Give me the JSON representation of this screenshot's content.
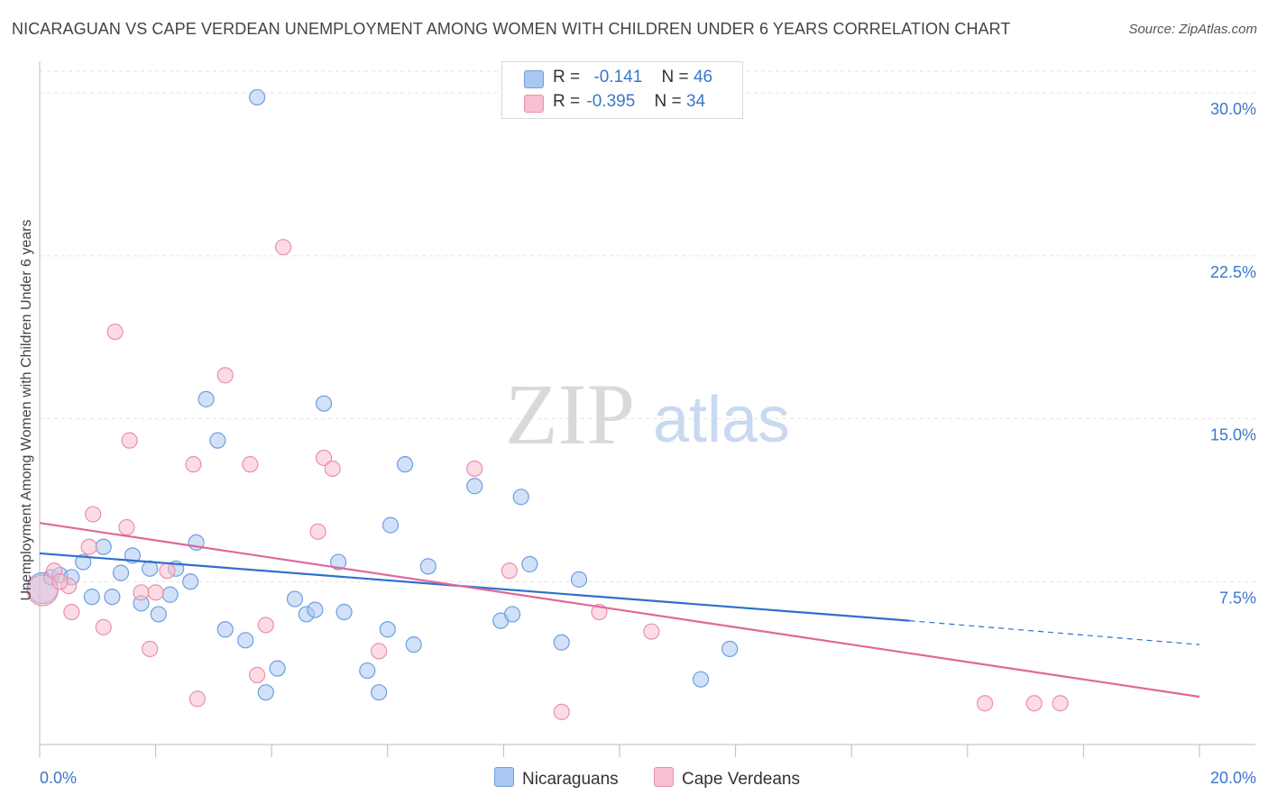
{
  "title": "NICARAGUAN VS CAPE VERDEAN UNEMPLOYMENT AMONG WOMEN WITH CHILDREN UNDER 6 YEARS CORRELATION CHART",
  "source": "Source: ZipAtlas.com",
  "watermark": {
    "zip": "ZIP",
    "atlas": "atlas"
  },
  "legend_stats": [
    {
      "r_label": "R =",
      "r_value": "-0.141",
      "n_label": "N =",
      "n_value": "46",
      "color": "#a9c8f2",
      "stroke": "#6f9fe0"
    },
    {
      "r_label": "R =",
      "r_value": "-0.395",
      "n_label": "N =",
      "n_value": "34",
      "color": "#f7bfd0",
      "stroke": "#ec8fab"
    }
  ],
  "chart_data": {
    "type": "scatter",
    "xlabel": "",
    "ylabel": "Unemployment Among Women with Children Under 6 years",
    "xlim": [
      0,
      20
    ],
    "ylim": [
      0,
      31
    ],
    "x_tick_labels": [
      "0.0%",
      "20.0%"
    ],
    "y_ticks": [
      7.5,
      15.0,
      22.5,
      30.0
    ],
    "y_tick_labels": [
      "7.5%",
      "15.0%",
      "22.5%",
      "30.0%"
    ],
    "grid": true,
    "series": [
      {
        "name": "Nicaraguans",
        "color": "#a9c8f2",
        "stroke": "#6f9fe0",
        "line_color": "#2f6fcf",
        "trend": {
          "x0": 0,
          "y0": 8.8,
          "x1": 15.0,
          "y1": 5.7,
          "dash_to_x": 20.0,
          "dash_y": 4.6
        },
        "points": [
          {
            "x": 0.05,
            "y": 7.2,
            "size": "large"
          },
          {
            "x": 0.2,
            "y": 7.7
          },
          {
            "x": 0.35,
            "y": 7.8
          },
          {
            "x": 0.55,
            "y": 7.7
          },
          {
            "x": 0.75,
            "y": 8.4
          },
          {
            "x": 0.9,
            "y": 6.8
          },
          {
            "x": 1.1,
            "y": 9.1
          },
          {
            "x": 1.25,
            "y": 6.8
          },
          {
            "x": 1.4,
            "y": 7.9
          },
          {
            "x": 1.6,
            "y": 8.7
          },
          {
            "x": 1.75,
            "y": 6.5
          },
          {
            "x": 1.9,
            "y": 8.1
          },
          {
            "x": 2.05,
            "y": 6.0
          },
          {
            "x": 2.25,
            "y": 6.9
          },
          {
            "x": 2.35,
            "y": 8.1
          },
          {
            "x": 2.6,
            "y": 7.5
          },
          {
            "x": 2.7,
            "y": 9.3
          },
          {
            "x": 2.87,
            "y": 15.9
          },
          {
            "x": 3.07,
            "y": 14.0
          },
          {
            "x": 3.2,
            "y": 5.3
          },
          {
            "x": 3.55,
            "y": 4.8
          },
          {
            "x": 3.75,
            "y": 29.8
          },
          {
            "x": 3.9,
            "y": 2.4
          },
          {
            "x": 4.1,
            "y": 3.5
          },
          {
            "x": 4.4,
            "y": 6.7
          },
          {
            "x": 4.6,
            "y": 6.0
          },
          {
            "x": 4.75,
            "y": 6.2
          },
          {
            "x": 4.9,
            "y": 15.7
          },
          {
            "x": 5.15,
            "y": 8.4
          },
          {
            "x": 5.25,
            "y": 6.1
          },
          {
            "x": 5.65,
            "y": 3.4
          },
          {
            "x": 5.85,
            "y": 2.4
          },
          {
            "x": 6.0,
            "y": 5.3
          },
          {
            "x": 6.3,
            "y": 12.9
          },
          {
            "x": 6.45,
            "y": 4.6
          },
          {
            "x": 6.05,
            "y": 10.1
          },
          {
            "x": 7.5,
            "y": 11.9
          },
          {
            "x": 6.7,
            "y": 8.2
          },
          {
            "x": 7.95,
            "y": 5.7
          },
          {
            "x": 8.3,
            "y": 11.4
          },
          {
            "x": 8.15,
            "y": 6.0
          },
          {
            "x": 8.45,
            "y": 8.3
          },
          {
            "x": 9.0,
            "y": 4.7
          },
          {
            "x": 9.3,
            "y": 7.6
          },
          {
            "x": 11.4,
            "y": 3.0
          },
          {
            "x": 11.9,
            "y": 4.4
          }
        ]
      },
      {
        "name": "Cape Verdeans",
        "color": "#f7bfd0",
        "stroke": "#ec8fab",
        "line_color": "#e0689a",
        "trend": {
          "x0": 0,
          "y0": 10.2,
          "x1": 20.0,
          "y1": 2.2
        },
        "points": [
          {
            "x": 0.05,
            "y": 7.1,
            "size": "large"
          },
          {
            "x": 0.25,
            "y": 8.0
          },
          {
            "x": 0.5,
            "y": 7.3
          },
          {
            "x": 0.55,
            "y": 6.1
          },
          {
            "x": 0.85,
            "y": 9.1
          },
          {
            "x": 0.92,
            "y": 10.6
          },
          {
            "x": 1.1,
            "y": 5.4
          },
          {
            "x": 1.3,
            "y": 19.0
          },
          {
            "x": 1.5,
            "y": 10.0
          },
          {
            "x": 1.55,
            "y": 14.0
          },
          {
            "x": 1.75,
            "y": 7.0
          },
          {
            "x": 1.9,
            "y": 4.4
          },
          {
            "x": 2.0,
            "y": 7.0
          },
          {
            "x": 2.2,
            "y": 8.0
          },
          {
            "x": 2.65,
            "y": 12.9
          },
          {
            "x": 2.72,
            "y": 2.1
          },
          {
            "x": 3.2,
            "y": 17.0
          },
          {
            "x": 3.63,
            "y": 12.9
          },
          {
            "x": 3.75,
            "y": 3.2
          },
          {
            "x": 3.9,
            "y": 5.5
          },
          {
            "x": 4.2,
            "y": 22.9
          },
          {
            "x": 4.8,
            "y": 9.8
          },
          {
            "x": 4.9,
            "y": 13.2
          },
          {
            "x": 5.05,
            "y": 12.7
          },
          {
            "x": 5.85,
            "y": 4.3
          },
          {
            "x": 7.5,
            "y": 12.7
          },
          {
            "x": 8.1,
            "y": 8.0
          },
          {
            "x": 9.0,
            "y": 1.5
          },
          {
            "x": 9.65,
            "y": 6.1
          },
          {
            "x": 10.55,
            "y": 5.2
          },
          {
            "x": 16.3,
            "y": 1.9
          },
          {
            "x": 17.15,
            "y": 1.9
          },
          {
            "x": 17.6,
            "y": 1.9
          },
          {
            "x": 0.35,
            "y": 7.5
          }
        ]
      }
    ]
  },
  "bottom_legend": [
    {
      "label": "Nicaraguans",
      "color": "#a9c8f2",
      "stroke": "#6f9fe0"
    },
    {
      "label": "Cape Verdeans",
      "color": "#f7bfd0",
      "stroke": "#ec8fab"
    }
  ]
}
